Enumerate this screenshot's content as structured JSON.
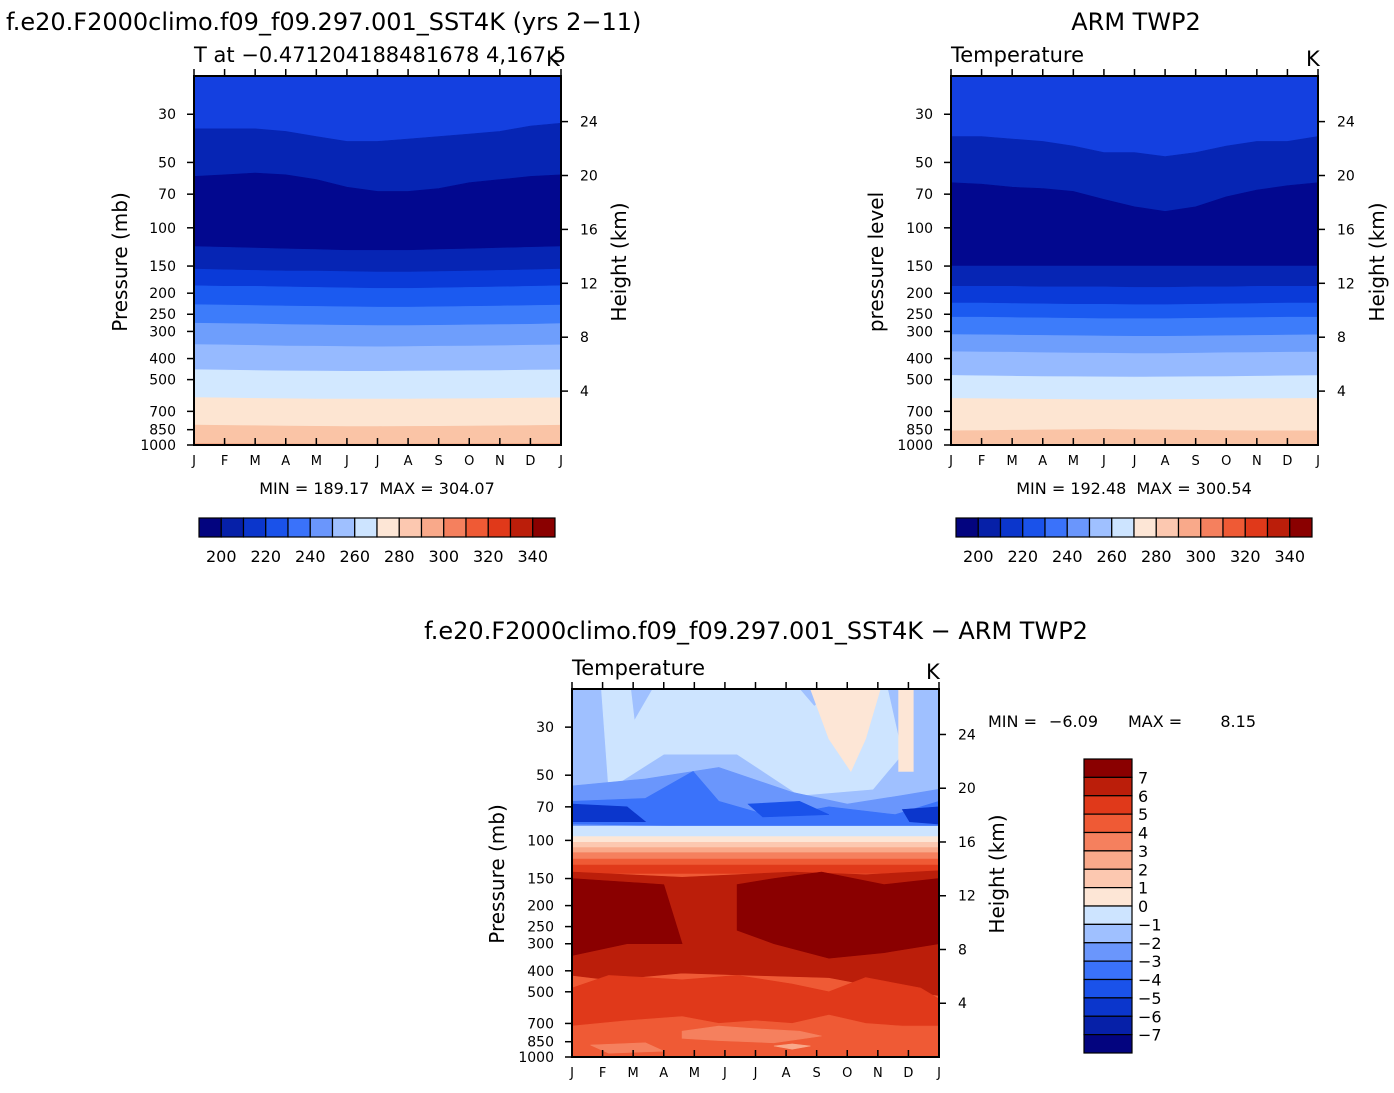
{
  "page": {
    "title_left": "f.e20.F2000climo.f09_f09.297.001_SST4K (yrs 2−11)",
    "title_right": "ARM TWP2",
    "title_diff": "f.e20.F2000climo.f09_f09.297.001_SST4K − ARM TWP2"
  },
  "chart_data": [
    {
      "id": "model",
      "type": "contour",
      "left_string": "T at −0.471204188481678 4,167.5",
      "right_string": "K",
      "ylabel": "Pressure (mb)",
      "ylabel_right": "Height (km)",
      "minmax": "MIN = 189.17  MAX = 304.07",
      "x_ticks": [
        "J",
        "F",
        "M",
        "A",
        "M",
        "J",
        "J",
        "A",
        "S",
        "O",
        "N",
        "D",
        "J"
      ],
      "y_ticks": [
        30,
        50,
        70,
        100,
        150,
        200,
        250,
        300,
        400,
        500,
        700,
        850,
        1000
      ],
      "ylim_mb": [
        20,
        1000
      ],
      "height_ticks_km": [
        24,
        20,
        16,
        12,
        8,
        4
      ],
      "colorbar_labels": [
        "200",
        "220",
        "240",
        "260",
        "280",
        "300",
        "320",
        "340"
      ],
      "colorbar_levels": [
        190,
        200,
        210,
        220,
        230,
        240,
        250,
        260,
        270,
        280,
        290,
        300,
        310,
        320,
        330,
        340,
        350
      ],
      "band_boundaries_mb": [
        [
          35,
          35,
          35,
          36,
          38,
          40,
          40,
          39,
          38,
          37,
          36,
          34,
          33
        ],
        [
          58,
          57,
          56,
          57,
          60,
          65,
          68,
          68,
          66,
          62,
          60,
          58,
          57
        ],
        [
          122,
          123,
          124,
          125,
          126,
          127,
          127,
          127,
          126,
          125,
          124,
          123,
          122
        ],
        [
          155,
          156,
          157,
          158,
          158,
          159,
          160,
          160,
          159,
          158,
          157,
          156,
          155
        ],
        [
          185,
          186,
          186,
          187,
          188,
          189,
          190,
          190,
          189,
          188,
          187,
          186,
          185
        ],
        [
          226,
          227,
          228,
          229,
          230,
          231,
          232,
          232,
          231,
          230,
          229,
          228,
          227
        ],
        [
          275,
          276,
          277,
          279,
          280,
          281,
          282,
          282,
          281,
          280,
          279,
          278,
          276
        ],
        [
          345,
          346,
          348,
          350,
          351,
          352,
          353,
          352,
          351,
          350,
          349,
          347,
          346
        ],
        [
          450,
          452,
          454,
          456,
          457,
          458,
          458,
          457,
          456,
          455,
          454,
          452,
          451
        ],
        [
          605,
          607,
          610,
          612,
          614,
          615,
          615,
          614,
          613,
          612,
          610,
          608,
          606
        ],
        [
          810,
          812,
          815,
          818,
          820,
          822,
          822,
          821,
          820,
          818,
          816,
          813,
          811
        ],
        [
          985,
          986,
          987,
          988,
          989,
          990,
          990,
          989,
          988,
          987,
          986,
          986,
          985
        ]
      ],
      "band_colors": [
        "#1440e0",
        "#0625b4",
        "#02088f",
        "#0625b4",
        "#0a3ad8",
        "#1b5af0",
        "#3d7cfa",
        "#6e9efc",
        "#96baff",
        "#d2e8ff",
        "#fde5d2",
        "#fac4a6",
        "#f8a07e",
        "#f07050"
      ]
    },
    {
      "id": "obs",
      "type": "contour",
      "left_string": "Temperature",
      "right_string": "K",
      "ylabel": "pressure level",
      "ylabel_right": "Height (km)",
      "minmax": "MIN = 192.48  MAX = 300.54",
      "x_ticks": [
        "J",
        "F",
        "M",
        "A",
        "M",
        "J",
        "J",
        "A",
        "S",
        "O",
        "N",
        "D",
        "J"
      ],
      "y_ticks": [
        30,
        50,
        70,
        100,
        150,
        200,
        250,
        300,
        400,
        500,
        700,
        850,
        1000
      ],
      "ylim_mb": [
        20,
        1000
      ],
      "height_ticks_km": [
        24,
        20,
        16,
        12,
        8,
        4
      ],
      "colorbar_labels": [
        "200",
        "220",
        "240",
        "260",
        "280",
        "300",
        "320",
        "340"
      ],
      "colorbar_levels": [
        190,
        200,
        210,
        220,
        230,
        240,
        250,
        260,
        270,
        280,
        290,
        300,
        310,
        320,
        330,
        340,
        350
      ],
      "band_boundaries_mb": [
        [
          38,
          38,
          39,
          40,
          42,
          45,
          45,
          47,
          45,
          42,
          40,
          40,
          38
        ],
        [
          62,
          63,
          65,
          66,
          68,
          74,
          80,
          84,
          80,
          72,
          67,
          64,
          62
        ],
        [
          150,
          150,
          150,
          150,
          150,
          150,
          150,
          150,
          150,
          150,
          150,
          150,
          150
        ],
        [
          186,
          186,
          186,
          187,
          187,
          187,
          188,
          188,
          187,
          187,
          186,
          186,
          186
        ],
        [
          222,
          222,
          223,
          224,
          225,
          225,
          226,
          226,
          225,
          224,
          223,
          222,
          222
        ],
        [
          258,
          258,
          259,
          260,
          261,
          262,
          262,
          262,
          261,
          260,
          259,
          258,
          258
        ],
        [
          310,
          311,
          312,
          313,
          314,
          315,
          316,
          316,
          315,
          314,
          313,
          312,
          311
        ],
        [
          372,
          373,
          374,
          376,
          377,
          378,
          379,
          379,
          378,
          376,
          375,
          374,
          373
        ],
        [
          478,
          480,
          482,
          484,
          485,
          486,
          487,
          486,
          485,
          484,
          482,
          480,
          479
        ],
        [
          610,
          612,
          614,
          616,
          618,
          620,
          620,
          618,
          616,
          614,
          612,
          611,
          610
        ],
        [
          860,
          858,
          855,
          852,
          850,
          848,
          850,
          852,
          855,
          858,
          860,
          860,
          860
        ]
      ],
      "band_colors": [
        "#1440e0",
        "#0625b4",
        "#02088f",
        "#0625b4",
        "#0a3ad8",
        "#1b5af0",
        "#3d7cfa",
        "#6e9efc",
        "#96baff",
        "#d2e8ff",
        "#fde5d2",
        "#fac4a6",
        "#f8a07e"
      ]
    },
    {
      "id": "diff",
      "type": "contour",
      "left_string": "Temperature",
      "right_string": "K",
      "ylabel": "Pressure (mb)",
      "ylabel_right": "Height (km)",
      "minmax_min_label": "MIN =",
      "minmax_min": "−6.09",
      "minmax_max_label": "MAX =",
      "minmax_max": "8.15",
      "x_ticks": [
        "J",
        "F",
        "M",
        "A",
        "M",
        "J",
        "J",
        "A",
        "S",
        "O",
        "N",
        "D",
        "J"
      ],
      "y_ticks": [
        30,
        50,
        70,
        100,
        150,
        200,
        250,
        300,
        400,
        500,
        700,
        850,
        1000
      ],
      "ylim_mb": [
        20,
        1000
      ],
      "height_ticks_km": [
        24,
        20,
        16,
        12,
        8,
        4
      ],
      "colorbar_labels": [
        "7",
        "6",
        "5",
        "4",
        "3",
        "2",
        "1",
        "0",
        "−1",
        "−2",
        "−3",
        "−4",
        "−5",
        "−6",
        "−7"
      ],
      "colorbar_levels": [
        -8,
        -7,
        -6,
        -5,
        -4,
        -3,
        -2,
        -1,
        0,
        1,
        2,
        3,
        4,
        5,
        6,
        7,
        8
      ]
    }
  ],
  "colorbar_colors": {
    "cool_to_warm": [
      "#03047f",
      "#0620a8",
      "#0b36cc",
      "#1a52ea",
      "#3a72fa",
      "#6a96fc",
      "#9fc0ff",
      "#cde4ff",
      "#fde6d6",
      "#fcc8b0",
      "#f9a98a",
      "#f5805e",
      "#ef5a35",
      "#e0391a",
      "#bb1e0a",
      "#8a0000"
    ]
  }
}
